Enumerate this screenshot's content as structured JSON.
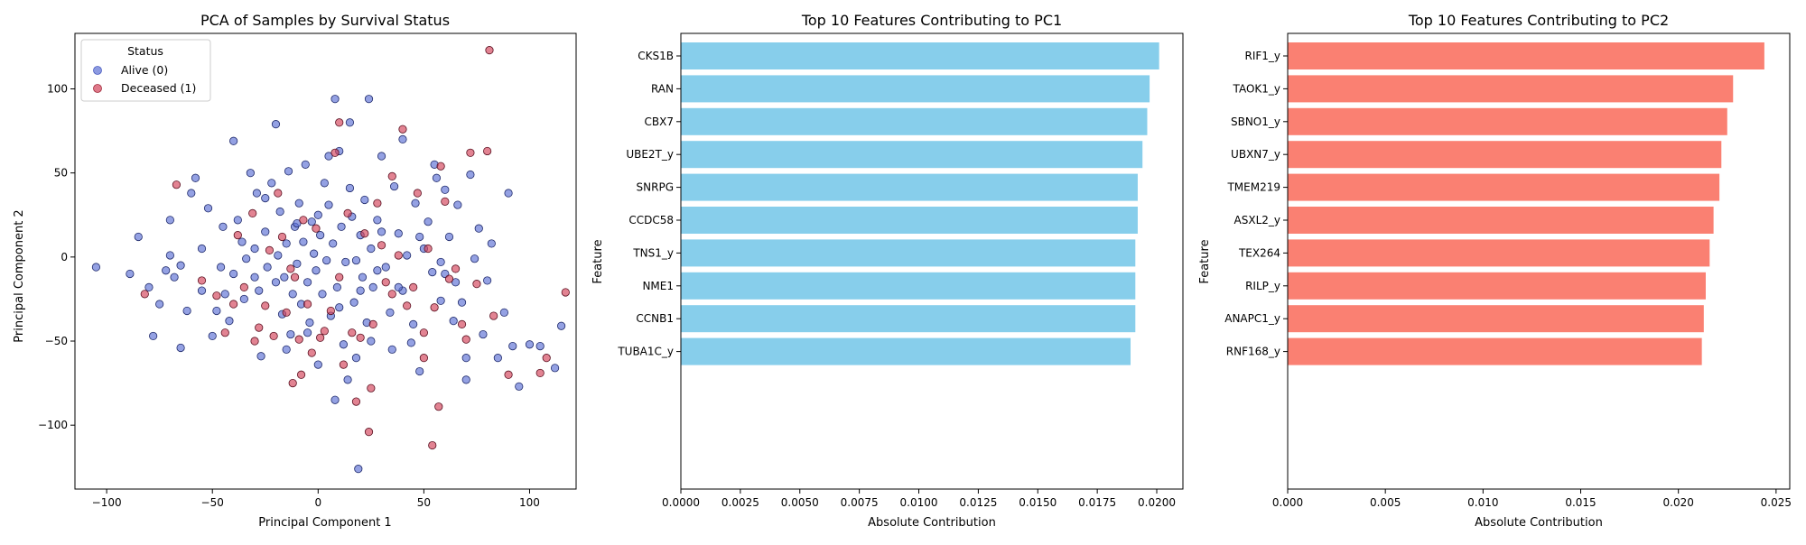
{
  "chart_data": [
    {
      "type": "scatter",
      "title": "PCA of Samples by Survival Status",
      "xlabel": "Principal Component 1",
      "ylabel": "Principal Component 2",
      "xlim": [
        -115,
        122
      ],
      "ylim": [
        -138,
        133
      ],
      "xticks": [
        -100,
        -50,
        0,
        50,
        100
      ],
      "yticks": [
        -100,
        -50,
        0,
        50,
        100
      ],
      "legend": {
        "title": "Status",
        "position": "top-left",
        "entries": [
          {
            "label": "Alive (0)",
            "color": "#5b6fd4"
          },
          {
            "label": "Deceased (1)",
            "color": "#d24058"
          }
        ]
      },
      "series": [
        {
          "name": "Alive (0)",
          "color": "#5b6fd4",
          "points": [
            [
              -105,
              -6
            ],
            [
              -89,
              -10
            ],
            [
              -85,
              12
            ],
            [
              -80,
              -18
            ],
            [
              -78,
              -47
            ],
            [
              -75,
              -28
            ],
            [
              -72,
              -8
            ],
            [
              -70,
              1
            ],
            [
              -68,
              -12
            ],
            [
              -65,
              -54
            ],
            [
              -62,
              -32
            ],
            [
              -60,
              38
            ],
            [
              -58,
              47
            ],
            [
              -55,
              5
            ],
            [
              -52,
              29
            ],
            [
              -50,
              -47
            ],
            [
              -48,
              -32
            ],
            [
              -46,
              -6
            ],
            [
              -44,
              -22
            ],
            [
              -42,
              -38
            ],
            [
              -40,
              69
            ],
            [
              -38,
              22
            ],
            [
              -36,
              9
            ],
            [
              -34,
              -1
            ],
            [
              -32,
              50
            ],
            [
              -30,
              -12
            ],
            [
              -29,
              38
            ],
            [
              -28,
              -20
            ],
            [
              -27,
              -59
            ],
            [
              -25,
              15
            ],
            [
              -24,
              -6
            ],
            [
              -22,
              44
            ],
            [
              -20,
              79
            ],
            [
              -19,
              1
            ],
            [
              -18,
              27
            ],
            [
              -17,
              -34
            ],
            [
              -16,
              -12
            ],
            [
              -15,
              8
            ],
            [
              -14,
              51
            ],
            [
              -13,
              -46
            ],
            [
              -12,
              -22
            ],
            [
              -11,
              18
            ],
            [
              -10,
              -4
            ],
            [
              -9,
              32
            ],
            [
              -8,
              -28
            ],
            [
              -7,
              9
            ],
            [
              -6,
              55
            ],
            [
              -5,
              -15
            ],
            [
              -4,
              -39
            ],
            [
              -3,
              21
            ],
            [
              -2,
              2
            ],
            [
              -1,
              -8
            ],
            [
              0,
              -64
            ],
            [
              1,
              13
            ],
            [
              2,
              -22
            ],
            [
              3,
              44
            ],
            [
              4,
              -2
            ],
            [
              5,
              31
            ],
            [
              6,
              -35
            ],
            [
              7,
              8
            ],
            [
              8,
              94
            ],
            [
              9,
              -18
            ],
            [
              10,
              63
            ],
            [
              11,
              18
            ],
            [
              12,
              -52
            ],
            [
              13,
              -3
            ],
            [
              14,
              -73
            ],
            [
              15,
              41
            ],
            [
              16,
              24
            ],
            [
              17,
              -27
            ],
            [
              18,
              -2
            ],
            [
              19,
              -126
            ],
            [
              20,
              13
            ],
            [
              21,
              -12
            ],
            [
              22,
              34
            ],
            [
              23,
              -39
            ],
            [
              24,
              94
            ],
            [
              25,
              5
            ],
            [
              26,
              -18
            ],
            [
              28,
              22
            ],
            [
              30,
              60
            ],
            [
              32,
              -6
            ],
            [
              34,
              -33
            ],
            [
              36,
              42
            ],
            [
              38,
              14
            ],
            [
              40,
              -20
            ],
            [
              42,
              1
            ],
            [
              44,
              -51
            ],
            [
              46,
              32
            ],
            [
              48,
              -68
            ],
            [
              50,
              5
            ],
            [
              52,
              21
            ],
            [
              54,
              -9
            ],
            [
              56,
              47
            ],
            [
              58,
              -26
            ],
            [
              60,
              -10
            ],
            [
              62,
              12
            ],
            [
              64,
              -38
            ],
            [
              66,
              31
            ],
            [
              68,
              -27
            ],
            [
              70,
              -73
            ],
            [
              72,
              49
            ],
            [
              74,
              -1
            ],
            [
              76,
              17
            ],
            [
              78,
              -46
            ],
            [
              80,
              -14
            ],
            [
              82,
              8
            ],
            [
              85,
              -60
            ],
            [
              88,
              -33
            ],
            [
              90,
              38
            ],
            [
              92,
              -53
            ],
            [
              95,
              -77
            ],
            [
              100,
              -52
            ],
            [
              105,
              -53
            ],
            [
              112,
              -66
            ],
            [
              115,
              -41
            ],
            [
              -30,
              5
            ],
            [
              -20,
              -15
            ],
            [
              -10,
              20
            ],
            [
              0,
              25
            ],
            [
              10,
              -30
            ],
            [
              20,
              -20
            ],
            [
              30,
              15
            ],
            [
              -45,
              18
            ],
            [
              -35,
              -25
            ],
            [
              5,
              60
            ],
            [
              15,
              80
            ],
            [
              -25,
              35
            ],
            [
              35,
              -55
            ],
            [
              45,
              -40
            ],
            [
              -55,
              -20
            ],
            [
              -15,
              -55
            ],
            [
              25,
              -50
            ],
            [
              40,
              70
            ],
            [
              55,
              55
            ],
            [
              60,
              40
            ],
            [
              65,
              -15
            ],
            [
              70,
              -60
            ],
            [
              -65,
              -5
            ],
            [
              -70,
              22
            ],
            [
              -40,
              -10
            ],
            [
              -5,
              -45
            ],
            [
              8,
              -85
            ],
            [
              18,
              -60
            ],
            [
              28,
              -8
            ],
            [
              38,
              -18
            ],
            [
              48,
              12
            ],
            [
              58,
              -3
            ]
          ]
        },
        {
          "name": "Deceased (1)",
          "color": "#d24058",
          "points": [
            [
              -82,
              -22
            ],
            [
              -67,
              43
            ],
            [
              -55,
              -14
            ],
            [
              -48,
              -23
            ],
            [
              -44,
              -45
            ],
            [
              -38,
              13
            ],
            [
              -35,
              -18
            ],
            [
              -31,
              26
            ],
            [
              -28,
              -42
            ],
            [
              -25,
              -29
            ],
            [
              -23,
              4
            ],
            [
              -21,
              -47
            ],
            [
              -19,
              38
            ],
            [
              -17,
              12
            ],
            [
              -15,
              -33
            ],
            [
              -13,
              -7
            ],
            [
              -11,
              -12
            ],
            [
              -9,
              -49
            ],
            [
              -7,
              22
            ],
            [
              -5,
              -28
            ],
            [
              -3,
              -57
            ],
            [
              -1,
              17
            ],
            [
              1,
              -48
            ],
            [
              3,
              -44
            ],
            [
              6,
              -32
            ],
            [
              8,
              62
            ],
            [
              10,
              -12
            ],
            [
              12,
              -64
            ],
            [
              14,
              26
            ],
            [
              16,
              -45
            ],
            [
              18,
              -86
            ],
            [
              20,
              -48
            ],
            [
              22,
              14
            ],
            [
              24,
              -104
            ],
            [
              26,
              -40
            ],
            [
              28,
              32
            ],
            [
              30,
              7
            ],
            [
              32,
              -15
            ],
            [
              35,
              -22
            ],
            [
              38,
              1
            ],
            [
              40,
              76
            ],
            [
              42,
              -29
            ],
            [
              45,
              -18
            ],
            [
              47,
              38
            ],
            [
              50,
              -45
            ],
            [
              52,
              5
            ],
            [
              54,
              -112
            ],
            [
              55,
              -30
            ],
            [
              57,
              -89
            ],
            [
              58,
              54
            ],
            [
              60,
              33
            ],
            [
              62,
              -13
            ],
            [
              65,
              -7
            ],
            [
              68,
              -40
            ],
            [
              70,
              -49
            ],
            [
              75,
              -16
            ],
            [
              80,
              63
            ],
            [
              81,
              123
            ],
            [
              83,
              -35
            ],
            [
              90,
              -70
            ],
            [
              105,
              -69
            ],
            [
              108,
              -60
            ],
            [
              117,
              -21
            ],
            [
              -40,
              -28
            ],
            [
              -12,
              -75
            ],
            [
              35,
              48
            ],
            [
              72,
              62
            ],
            [
              -30,
              -50
            ],
            [
              10,
              80
            ],
            [
              50,
              -60
            ],
            [
              -8,
              -70
            ],
            [
              25,
              -78
            ]
          ]
        }
      ]
    },
    {
      "type": "bar",
      "orientation": "horizontal",
      "title": "Top 10 Features Contributing to PC1",
      "xlabel": "Absolute Contribution",
      "ylabel": "Feature",
      "color": "#87ceeb",
      "xlim": [
        0,
        0.0211
      ],
      "xticks": [
        "0.0000",
        "0.0025",
        "0.0050",
        "0.0075",
        "0.0100",
        "0.0125",
        "0.0150",
        "0.0175",
        "0.0200"
      ],
      "categories": [
        "CKS1B",
        "RAN",
        "CBX7",
        "UBE2T_y",
        "SNRPG",
        "CCDC58",
        "TNS1_y",
        "NME1",
        "CCNB1",
        "TUBA1C_y"
      ],
      "values": [
        0.0201,
        0.0197,
        0.0196,
        0.0194,
        0.0192,
        0.0192,
        0.0191,
        0.0191,
        0.0191,
        0.0189
      ]
    },
    {
      "type": "bar",
      "orientation": "horizontal",
      "title": "Top 10 Features Contributing to PC2",
      "xlabel": "Absolute Contribution",
      "ylabel": "Feature",
      "color": "#fa8072",
      "xlim": [
        0,
        0.0257
      ],
      "xticks": [
        "0.000",
        "0.005",
        "0.010",
        "0.015",
        "0.020",
        "0.025"
      ],
      "categories": [
        "RIF1_y",
        "TAOK1_y",
        "SBNO1_y",
        "UBXN7_y",
        "TMEM219",
        "ASXL2_y",
        "TEX264",
        "RILP_y",
        "ANAPC1_y",
        "RNF168_y"
      ],
      "values": [
        0.0244,
        0.0228,
        0.0225,
        0.0222,
        0.0221,
        0.0218,
        0.0216,
        0.0214,
        0.0213,
        0.0212
      ]
    }
  ]
}
